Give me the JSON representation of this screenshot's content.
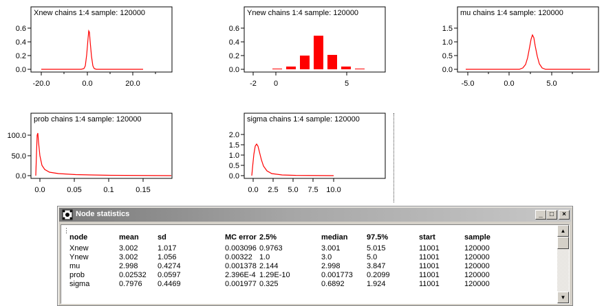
{
  "plots": [
    {
      "id": "xnew",
      "title": "Xnew chains 1:4 sample: 120000",
      "y_ticks": [
        "0.6",
        "0.4",
        "0.2",
        "0.0"
      ],
      "x_ticks": [
        "-20.0",
        "0.0",
        "20.0"
      ]
    },
    {
      "id": "ynew",
      "title": "Ynew chains 1:4 sample: 120000",
      "y_ticks": [
        "0.6",
        "0.4",
        "0.2",
        "0.0"
      ],
      "x_ticks": [
        "-2",
        "0",
        "5"
      ]
    },
    {
      "id": "mu",
      "title": "mu chains 1:4 sample: 120000",
      "y_ticks": [
        "1.5",
        "1.0",
        "0.5",
        "0.0"
      ],
      "x_ticks": [
        "-5.0",
        "0.0",
        "5.0"
      ]
    },
    {
      "id": "prob",
      "title": "prob chains 1:4 sample: 120000",
      "y_ticks": [
        "100.0",
        "50.0",
        "0.0"
      ],
      "x_ticks": [
        "0.0",
        "0.05",
        "0.1",
        "0.15"
      ]
    },
    {
      "id": "sigma",
      "title": "sigma chains 1:4 sample: 120000",
      "y_ticks": [
        "2.0",
        "1.5",
        "1.0",
        "0.5",
        "0.0"
      ],
      "x_ticks": [
        "0.0",
        "2.5",
        "5.0",
        "7.5",
        "10.0"
      ]
    }
  ],
  "window": {
    "title": "Node statistics",
    "buttons": {
      "minimize": "_",
      "maximize": "□",
      "close": "×"
    },
    "columns": [
      "node",
      "mean",
      "sd",
      "MC error",
      "2.5%",
      "median",
      "97.5%",
      "start",
      "sample"
    ],
    "rows": [
      [
        "Xnew",
        "3.002",
        "1.017",
        "0.003096",
        "0.9763",
        "3.001",
        "5.015",
        "11001",
        "120000"
      ],
      [
        "Ynew",
        "3.002",
        "1.056",
        "0.00322",
        "1.0",
        "3.0",
        "5.0",
        "11001",
        "120000"
      ],
      [
        "mu",
        "2.998",
        "0.4274",
        "0.001378",
        "2.144",
        "2.998",
        "3.847",
        "11001",
        "120000"
      ],
      [
        "prob",
        "0.02532",
        "0.0597",
        "2.396E-4",
        "1.29E-10",
        "0.001773",
        "0.2099",
        "11001",
        "120000"
      ],
      [
        "sigma",
        "0.7976",
        "0.4469",
        "0.001977",
        "0.325",
        "0.6892",
        "1.924",
        "11001",
        "120000"
      ]
    ]
  },
  "colors": {
    "curve": "#ff0000",
    "axis": "#000000"
  },
  "icons": {
    "window": "node-stats-icon",
    "scroll_up": "arrow-up-icon",
    "scroll_down": "arrow-down-icon"
  }
}
